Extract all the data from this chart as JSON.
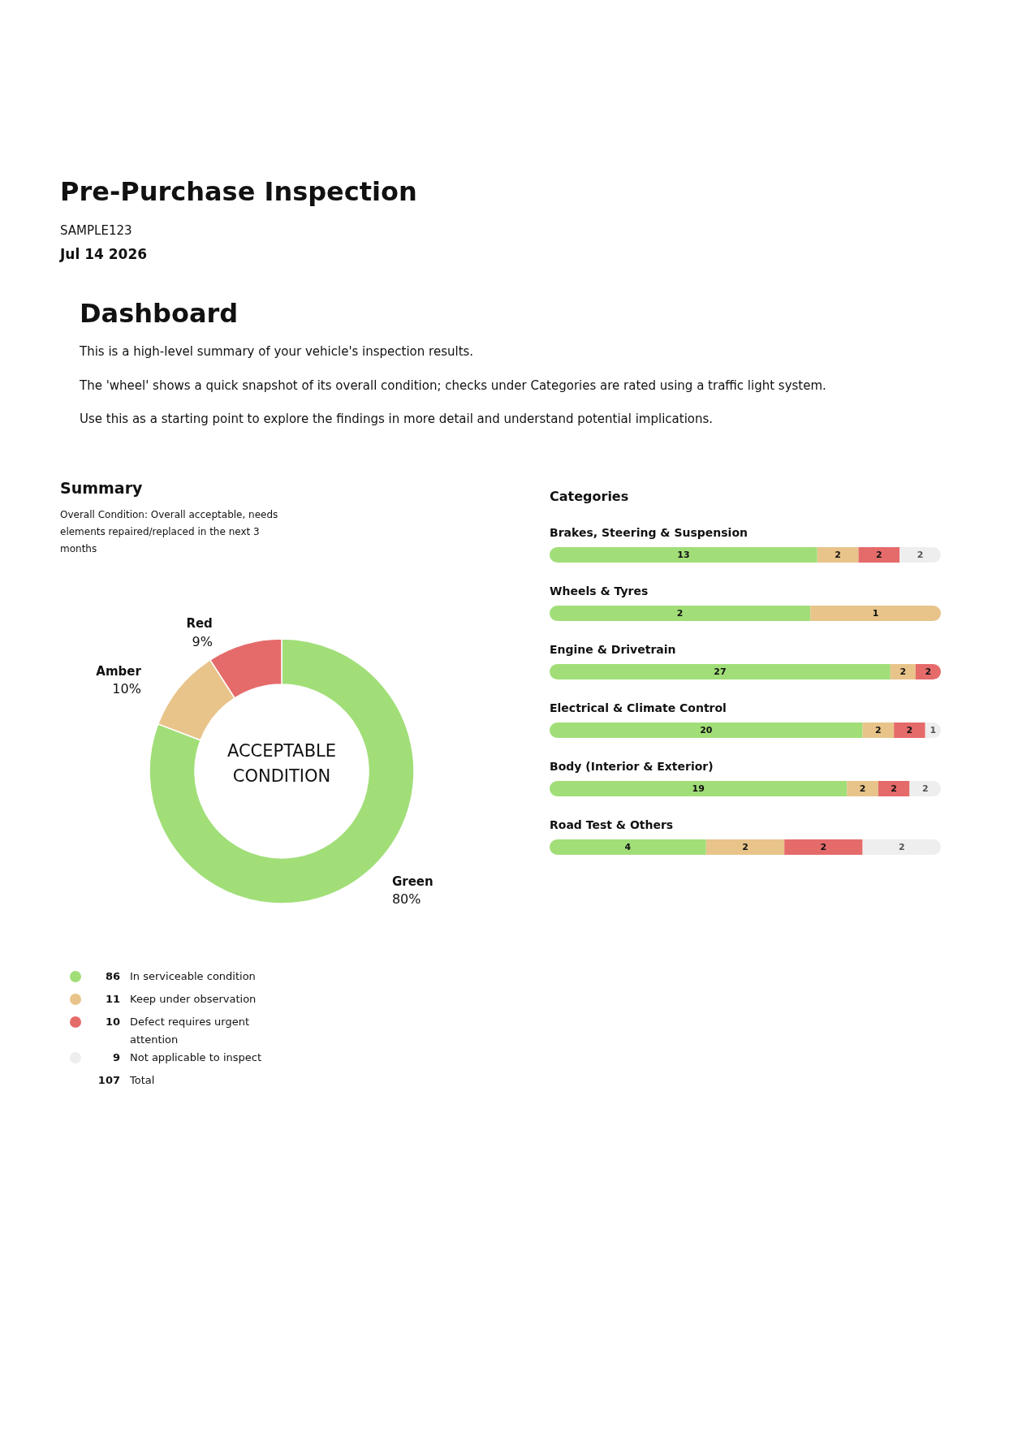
{
  "chart_data": [
    {
      "type": "other",
      "title": "Pre-Purchase Inspection",
      "subtitle": "SAMPLE123",
      "annotations": [
        "Jul 14 2026",
        "Dashboard",
        "This is a high-level summary of your vehicle's inspection results.",
        "The 'wheel' shows a quick snapshot of its overall condition; checks under Categories are rated using a traffic light system.",
        "Use this as a starting point to explore the findings in more detail and understand potential implications."
      ]
    },
    {
      "type": "donut",
      "title": "Summary",
      "subtitle": "Overall Condition: Overall acceptable, needs elements repaired/replaced in the next 3 months",
      "categories": [
        "Green",
        "Amber",
        "Red"
      ],
      "values": [
        80,
        10,
        9
      ],
      "colors": [
        "#a1de78",
        "#e8c48a",
        "#e56b6a"
      ],
      "value_labels": [
        "80%",
        "10%",
        "9%"
      ],
      "annotations": [
        "ACCEPTABLE CONDITION"
      ]
    },
    {
      "type": "other",
      "categories": [
        "In serviceable condition",
        "Keep under observation",
        "Defect requires urgent attention",
        "Not applicable to inspect"
      ],
      "value_labels": [
        "86",
        "11",
        "10",
        "9"
      ],
      "colors": [
        "#a1de78",
        "#e8c48a",
        "#e56b6a",
        "#eeeeee"
      ],
      "annotations": [
        "107",
        "Total"
      ]
    },
    {
      "type": "other",
      "title": "Categories"
    },
    {
      "type": "bar",
      "orientation": "horizontal",
      "stacked": true,
      "title": "Brakes, Steering & Suspension",
      "categories": [
        null
      ],
      "xlim": [
        0,
        19
      ],
      "tick_labels": false,
      "data_labels": true,
      "series": [
        {
          "color": "#a1de78",
          "values": [
            13
          ]
        },
        {
          "color": "#e8c48a",
          "values": [
            2
          ]
        },
        {
          "color": "#e56b6a",
          "values": [
            2
          ]
        },
        {
          "color": "#eeeeee",
          "values": [
            2
          ]
        }
      ]
    },
    {
      "type": "bar",
      "orientation": "horizontal",
      "stacked": true,
      "title": "Wheels & Tyres",
      "categories": [
        null
      ],
      "xlim": [
        0,
        3
      ],
      "tick_labels": false,
      "data_labels": true,
      "series": [
        {
          "color": "#a1de78",
          "values": [
            2
          ]
        },
        {
          "color": "#e8c48a",
          "values": [
            1
          ]
        }
      ]
    },
    {
      "type": "bar",
      "orientation": "horizontal",
      "stacked": true,
      "title": "Engine & Drivetrain",
      "categories": [
        null
      ],
      "xlim": [
        0,
        31
      ],
      "tick_labels": false,
      "data_labels": true,
      "series": [
        {
          "color": "#a1de78",
          "values": [
            27
          ]
        },
        {
          "color": "#e8c48a",
          "values": [
            2
          ]
        },
        {
          "color": "#e56b6a",
          "values": [
            2
          ]
        }
      ]
    },
    {
      "type": "bar",
      "orientation": "horizontal",
      "stacked": true,
      "title": "Electrical & Climate Control",
      "categories": [
        null
      ],
      "xlim": [
        0,
        25
      ],
      "tick_labels": false,
      "data_labels": true,
      "series": [
        {
          "color": "#a1de78",
          "values": [
            20
          ]
        },
        {
          "color": "#e8c48a",
          "values": [
            2
          ]
        },
        {
          "color": "#e56b6a",
          "values": [
            2
          ]
        },
        {
          "color": "#eeeeee",
          "values": [
            1
          ]
        }
      ]
    },
    {
      "type": "bar",
      "orientation": "horizontal",
      "stacked": true,
      "title": "Body (Interior & Exterior)",
      "categories": [
        null
      ],
      "xlim": [
        0,
        25
      ],
      "tick_labels": false,
      "data_labels": true,
      "series": [
        {
          "color": "#a1de78",
          "values": [
            19
          ]
        },
        {
          "color": "#e8c48a",
          "values": [
            2
          ]
        },
        {
          "color": "#e56b6a",
          "values": [
            2
          ]
        },
        {
          "color": "#eeeeee",
          "values": [
            2
          ]
        }
      ]
    },
    {
      "type": "bar",
      "orientation": "horizontal",
      "stacked": true,
      "title": "Road Test & Others",
      "categories": [
        null
      ],
      "xlim": [
        0,
        10
      ],
      "tick_labels": false,
      "data_labels": true,
      "series": [
        {
          "color": "#a1de78",
          "values": [
            4
          ]
        },
        {
          "color": "#e8c48a",
          "values": [
            2
          ]
        },
        {
          "color": "#e56b6a",
          "values": [
            2
          ]
        },
        {
          "color": "#eeeeee",
          "values": [
            2
          ]
        }
      ]
    }
  ]
}
